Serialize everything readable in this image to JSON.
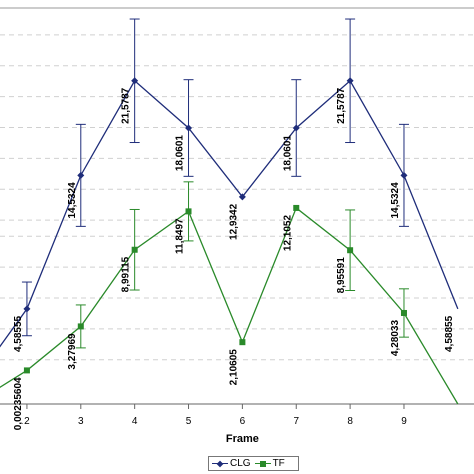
{
  "chart_data": {
    "type": "line",
    "xlabel": "Frame",
    "ylabel": "",
    "x": [
      1,
      2,
      3,
      4,
      5,
      6,
      7,
      8,
      9,
      10
    ],
    "x_tick_labels": [
      "2",
      "3",
      "4",
      "5",
      "6",
      "7",
      "8",
      "9"
    ],
    "xlim": [
      1.5,
      10.3
    ],
    "ylim": [
      -2.5,
      27
    ],
    "grid": "horizontal-dashed",
    "legend_position": "bottom-center",
    "series": [
      {
        "name": "CLG",
        "color": "#1f2d7a",
        "marker": "diamond",
        "values": [
          -1.0,
          4.58555,
          14.5324,
          21.5787,
          18.0601,
          12.9342,
          18.0601,
          21.5787,
          14.5324,
          4.58855
        ],
        "labels": [
          "",
          "4,58555",
          "14,5324",
          "21,5787",
          "18,0601",
          "12,9342",
          "18,0601",
          "21,5787",
          "14,5324",
          "4,58855"
        ],
        "error": [
          0,
          2.0,
          3.8,
          4.6,
          3.6,
          0,
          3.6,
          4.6,
          3.8,
          0
        ]
      },
      {
        "name": "TF",
        "color": "#2a8a2a",
        "marker": "square",
        "values": [
          -2.5,
          0.00235604,
          3.27969,
          8.99115,
          11.8497,
          2.10605,
          12.1052,
          8.95591,
          4.28033,
          -2.5
        ],
        "labels": [
          "",
          "0,00235604",
          "3,27969",
          "8,99115",
          "11,8497",
          "2,10605",
          "12,1052",
          "8,95591",
          "4,28033",
          ""
        ],
        "error": [
          0,
          0,
          1.6,
          3.0,
          2.2,
          0,
          0,
          3.0,
          1.8,
          0
        ]
      }
    ]
  }
}
